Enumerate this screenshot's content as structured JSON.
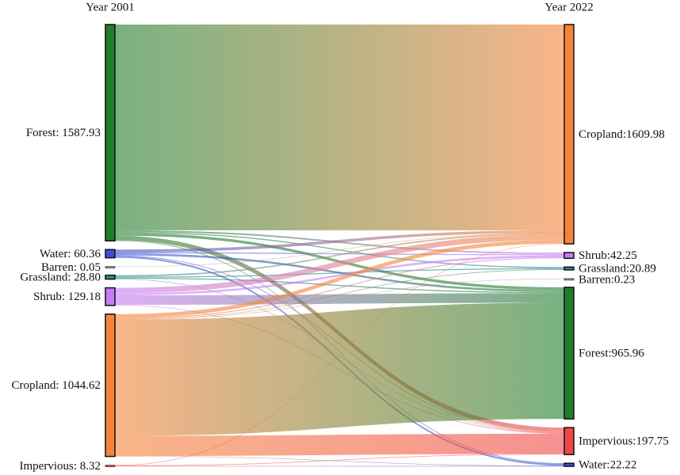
{
  "chart_data": {
    "type": "sankey",
    "columns": [
      {
        "title": "Year 2001",
        "nodes": [
          {
            "label": "Forest: 1587.93",
            "value": 1587.93,
            "color": "#1f7d2c"
          },
          {
            "label": "Water: 60.36",
            "value": 60.36,
            "color": "#3b4fd4"
          },
          {
            "label": "Barren: 0.05",
            "value": 0.05,
            "color": "#9a9a9a"
          },
          {
            "label": "Grassland: 28.80",
            "value": 28.8,
            "color": "#2a8c8c"
          },
          {
            "label": "Shrub: 129.18",
            "value": 129.18,
            "color": "#c67cf2"
          },
          {
            "label": "Cropland: 1044.62",
            "value": 1044.62,
            "color": "#f4843a"
          },
          {
            "label": "Impervious: 8.32",
            "value": 8.32,
            "color": "#f04848"
          }
        ]
      },
      {
        "title": "Year 2022",
        "nodes": [
          {
            "label": "Cropland:1609.98",
            "value": 1609.98,
            "color": "#f4843a"
          },
          {
            "label": "Shrub:42.25",
            "value": 42.25,
            "color": "#c67cf2"
          },
          {
            "label": "Grassland:20.89",
            "value": 20.89,
            "color": "#2a8c8c"
          },
          {
            "label": "Barren:0.23",
            "value": 0.23,
            "color": "#9a9a9a"
          },
          {
            "label": "Forest:965.96",
            "value": 965.96,
            "color": "#1f7d2c"
          },
          {
            "label": "Impervious:197.75",
            "value": 197.75,
            "color": "#f04848"
          },
          {
            "label": "Water:22.22",
            "value": 22.22,
            "color": "#3b4fd4"
          }
        ]
      }
    ],
    "links": [
      {
        "source": 0,
        "target": 0,
        "value": 1510
      },
      {
        "source": 0,
        "target": 1,
        "value": 12
      },
      {
        "source": 0,
        "target": 2,
        "value": 8
      },
      {
        "source": 0,
        "target": 4,
        "value": 20
      },
      {
        "source": 0,
        "target": 5,
        "value": 33
      },
      {
        "source": 0,
        "target": 6,
        "value": 4.93
      },
      {
        "source": 1,
        "target": 0,
        "value": 20
      },
      {
        "source": 1,
        "target": 1,
        "value": 8
      },
      {
        "source": 1,
        "target": 4,
        "value": 15
      },
      {
        "source": 1,
        "target": 5,
        "value": 5
      },
      {
        "source": 1,
        "target": 6,
        "value": 12.36
      },
      {
        "source": 2,
        "target": 0,
        "value": 0.05
      },
      {
        "source": 3,
        "target": 0,
        "value": 10
      },
      {
        "source": 3,
        "target": 2,
        "value": 8
      },
      {
        "source": 3,
        "target": 4,
        "value": 8
      },
      {
        "source": 3,
        "target": 5,
        "value": 2.8
      },
      {
        "source": 4,
        "target": 0,
        "value": 40
      },
      {
        "source": 4,
        "target": 1,
        "value": 15
      },
      {
        "source": 4,
        "target": 4,
        "value": 70
      },
      {
        "source": 4,
        "target": 5,
        "value": 4.18
      },
      {
        "source": 5,
        "target": 0,
        "value": 27.93
      },
      {
        "source": 5,
        "target": 1,
        "value": 7.25
      },
      {
        "source": 5,
        "target": 2,
        "value": 4.89
      },
      {
        "source": 5,
        "target": 3,
        "value": 0.23
      },
      {
        "source": 5,
        "target": 4,
        "value": 852.96
      },
      {
        "source": 5,
        "target": 5,
        "value": 148.38
      },
      {
        "source": 5,
        "target": 6,
        "value": 3
      },
      {
        "source": 6,
        "target": 0,
        "value": 2
      },
      {
        "source": 6,
        "target": 5,
        "value": 4.39
      },
      {
        "source": 6,
        "target": 6,
        "value": 1.93
      }
    ]
  }
}
